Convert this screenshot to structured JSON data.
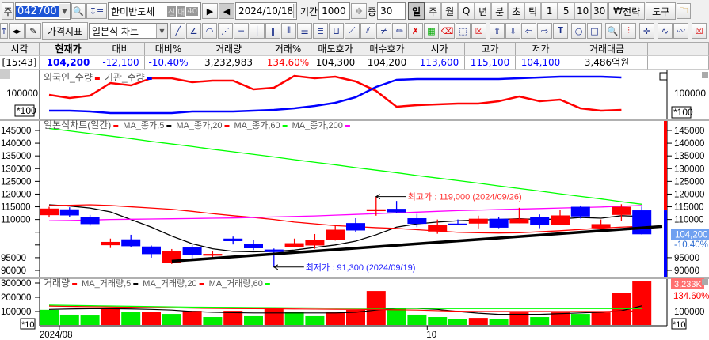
{
  "toolbar": {
    "market": "주",
    "code": "042700",
    "name": "한미반도체",
    "badges": [
      "신",
      "대",
      "40"
    ],
    "date": "2024/10/18",
    "period_label": "기간",
    "period": "1000",
    "mid_label": "중",
    "mid": "30",
    "timeframes": [
      "일",
      "주",
      "월",
      "Q",
      "년",
      "분",
      "초",
      "틱",
      "1",
      "5",
      "10",
      "30"
    ],
    "active_timeframe": "일",
    "currency": "₩",
    "strategy": "전략",
    "tools": "도구"
  },
  "toolbar2": {
    "price_indicator": "가격지표",
    "chart_type": "일본식 차트"
  },
  "quote": {
    "headers": [
      "시각",
      "현재가",
      "대비",
      "대비%",
      "거래량",
      "거래%",
      "매도호가",
      "매수호가",
      "시가",
      "고가",
      "저가",
      "거래대금",
      ""
    ],
    "values": [
      "[15:43]",
      "104,200",
      "-12,100",
      "-10.40%",
      "3,232,983",
      "134.60%",
      "104,300",
      "104,200",
      "113,600",
      "115,100",
      "104,100",
      "3,486억원",
      ""
    ],
    "colors": [
      "#000000",
      "#0000ff",
      "#0000ff",
      "#0000ff",
      "#000000",
      "#ff0000",
      "#000000",
      "#000000",
      "#0000ff",
      "#0000ff",
      "#0000ff",
      "#000000",
      "#000000"
    ]
  },
  "chart_data": [
    {
      "type": "line",
      "panel": "investor",
      "legend": [
        "외국인_수량",
        "기관_수량"
      ],
      "tick_label": "100000",
      "multiplier": "*100",
      "series": [
        {
          "name": "외국인_수량",
          "color": "#ff0000",
          "values": [
            95000,
            85000,
            92500,
            132500,
            125000,
            147500,
            147500,
            135000,
            140000,
            140000,
            112500,
            117500,
            155000,
            147500,
            152500,
            137500,
            107500,
            57500,
            62500,
            65000,
            67500,
            67500,
            75000,
            90000,
            75000,
            80000,
            52500,
            45000,
            47500
          ]
        },
        {
          "name": "기관_수량",
          "color": "#0000ff",
          "values": [
            45000,
            45000,
            42500,
            37500,
            37500,
            37500,
            37500,
            42500,
            42500,
            42500,
            45000,
            47500,
            52500,
            60000,
            70000,
            87500,
            120000,
            142500,
            145000,
            145000,
            145000,
            145000,
            145000,
            147500,
            150000,
            152500,
            152500,
            152500,
            150000
          ]
        }
      ]
    },
    {
      "type": "candlestick",
      "panel": "price",
      "title": "일본식차트(일간)",
      "legend": [
        "일본식차트(일간)",
        "MA_종가,5",
        "MA_종가,20",
        "MA_종가,60",
        "MA_종가,200"
      ],
      "y_ticks": [
        "145000",
        "140000",
        "135000",
        "130000",
        "125000",
        "120000",
        "115000",
        "110000",
        "95000",
        "90000"
      ],
      "ylim": [
        88000,
        147000
      ],
      "current_price": "104,200",
      "current_change": "-10.40%",
      "ohlc": [
        [
          111700,
          115000,
          110800,
          114300
        ],
        [
          114000,
          114800,
          110900,
          111600
        ],
        [
          111000,
          111800,
          107600,
          108200
        ],
        [
          99900,
          102500,
          98800,
          101200
        ],
        [
          102200,
          104000,
          99000,
          99500
        ],
        [
          99400,
          99800,
          95000,
          96400
        ],
        [
          93000,
          98400,
          92500,
          97600
        ],
        [
          99000,
          100000,
          94700,
          96200
        ],
        [
          95800,
          97500,
          95300,
          96500
        ],
        [
          102500,
          103300,
          100200,
          101500
        ],
        [
          100500,
          102000,
          98000,
          98700
        ],
        [
          98200,
          98600,
          91300,
          97200
        ],
        [
          99300,
          102500,
          99000,
          100700
        ],
        [
          99800,
          104300,
          98500,
          102000
        ],
        [
          102000,
          107900,
          101700,
          106000
        ],
        [
          108600,
          110500,
          105000,
          105700
        ],
        [
          113300,
          119000,
          111500,
          114000
        ],
        [
          114200,
          117300,
          112600,
          112800
        ],
        [
          110500,
          112200,
          107000,
          108300
        ],
        [
          105300,
          110000,
          104400,
          108000
        ],
        [
          108400,
          110000,
          107800,
          107800
        ],
        [
          108400,
          111500,
          106500,
          110300
        ],
        [
          110300,
          111000,
          106600,
          106800
        ],
        [
          108500,
          114600,
          108500,
          110300
        ],
        [
          111000,
          112000,
          106600,
          107800
        ],
        [
          108000,
          113700,
          108000,
          111600
        ],
        [
          115000,
          115500,
          110400,
          111200
        ],
        [
          106700,
          110000,
          105700,
          108200
        ],
        [
          111800,
          116000,
          109500,
          115000
        ],
        [
          113600,
          115100,
          104100,
          104200
        ]
      ],
      "ma": [
        {
          "name": "MA_종가,5",
          "color": "#000000",
          "values": [
            115800,
            115300,
            114500,
            113000,
            110000,
            107000,
            103500,
            100500,
            98500,
            97500,
            97300,
            97500,
            98000,
            99000,
            100000,
            101500,
            104000,
            107000,
            108300,
            109000,
            109500,
            109800,
            110000,
            110300,
            110000,
            110200,
            110800,
            110500,
            111500,
            111200
          ]
        },
        {
          "name": "MA_종가,20",
          "color": "#ff0000",
          "values": [
            115500,
            115600,
            115800,
            115500,
            115000,
            114500,
            114000,
            113200,
            112300,
            111500,
            110800,
            110000,
            109000,
            108300,
            107600,
            107200,
            106800,
            106500,
            106000,
            105500,
            105000,
            104800,
            104700,
            104800,
            105200,
            105600,
            106100,
            106600,
            107000,
            107300
          ]
        },
        {
          "name": "MA_종가,60",
          "color": "#00ff00",
          "values": [
            145800,
            144800,
            143800,
            142800,
            141800,
            140700,
            139700,
            138700,
            137600,
            136600,
            135600,
            134600,
            133500,
            132500,
            131500,
            130400,
            129400,
            128400,
            127300,
            126300,
            125300,
            124300,
            123200,
            122200,
            121200,
            120100,
            119100,
            118100,
            117000,
            116000
          ]
        },
        {
          "name": "MA_종가,200",
          "color": "#ff00ff",
          "values": [
            109500,
            109600,
            109800,
            110000,
            110100,
            110200,
            110300,
            110400,
            110500,
            110600,
            110800,
            111000,
            111200,
            111400,
            111700,
            112000,
            112300,
            112600,
            112900,
            113200,
            113500,
            113700,
            113900,
            114100,
            114300,
            114500,
            114700,
            114900,
            115200,
            115500
          ]
        }
      ],
      "trendline": {
        "from": [
          6,
          93600
        ],
        "to": [
          30,
          107300
        ],
        "color": "#000000"
      },
      "annotations": [
        {
          "text": "최고가 : 119,000 (2024/09/26)",
          "index": 16,
          "price": 119000,
          "color": "#ff3030"
        },
        {
          "text": "최저가 : 91,300 (2024/09/19)",
          "index": 11,
          "price": 91300,
          "color": "#2020ff"
        }
      ]
    },
    {
      "type": "bar",
      "panel": "volume",
      "legend": [
        "거래량",
        "MA_거래량,5",
        "MA_거래량,20",
        "MA_거래량,60"
      ],
      "y_ticks": [
        "300000",
        "200000",
        "100000"
      ],
      "multiplier": "*10",
      "current_volume": "3,233K",
      "current_ratio": "134.60%",
      "values": [
        112000,
        78000,
        72000,
        122000,
        100000,
        100000,
        83000,
        105000,
        61000,
        105000,
        67000,
        122000,
        100000,
        67000,
        94000,
        111000,
        244000,
        122000,
        78000,
        61000,
        50000,
        55000,
        50000,
        94000,
        61000,
        94000,
        83000,
        94000,
        233000,
        311000
      ],
      "colors": [
        "g",
        "g",
        "g",
        "r",
        "g",
        "r",
        "g",
        "r",
        "g",
        "r",
        "g",
        "r",
        "g",
        "g",
        "r",
        "r",
        "r",
        "g",
        "g",
        "g",
        "g",
        "r",
        "g",
        "r",
        "g",
        "r",
        "g",
        "r",
        "r",
        "r"
      ],
      "ma": [
        {
          "name": "MA_거래량,5",
          "color": "#000000",
          "values": [
            115000,
            118000,
            120000,
            120000,
            118000,
            115000,
            110000,
            100000,
            95000,
            92000,
            90000,
            90000,
            90000,
            90000,
            90000,
            95000,
            110000,
            122000,
            122000,
            115000,
            100000,
            88000,
            80000,
            80000,
            80000,
            85000,
            90000,
            95000,
            105000,
            140000
          ]
        },
        {
          "name": "MA_거래량,20",
          "color": "#ff0000",
          "values": [
            138000,
            136000,
            134000,
            132000,
            130000,
            128000,
            126000,
            124000,
            122000,
            121000,
            120000,
            119000,
            118000,
            117000,
            116000,
            115000,
            114000,
            112000,
            110000,
            106000,
            102000,
            100000,
            100000,
            100000,
            100000,
            100000,
            100000,
            100000,
            102000,
            105000
          ]
        },
        {
          "name": "MA_거래량,60",
          "color": "#00ff00",
          "values": [
            145000,
            143000,
            141000,
            139000,
            137000,
            135000,
            133000,
            131000,
            130000,
            129000,
            128000,
            127000,
            126000,
            125000,
            124000,
            123000,
            122000,
            122000,
            122000,
            121000,
            121000,
            121000,
            121000,
            121000,
            121000,
            121000,
            121000,
            121000,
            121000,
            121000
          ]
        }
      ]
    }
  ],
  "x_axis": {
    "labels": [
      {
        "text": "2024/08",
        "index": 0.5
      },
      {
        "text": "10",
        "index": 18.5
      }
    ]
  }
}
